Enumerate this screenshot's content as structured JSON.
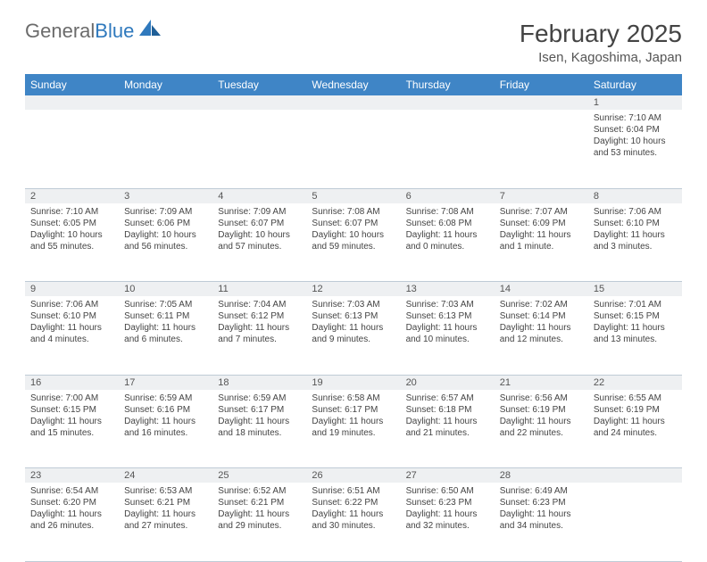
{
  "brand": {
    "part1": "General",
    "part2": "Blue"
  },
  "header": {
    "month_title": "February 2025",
    "location": "Isen, Kagoshima, Japan"
  },
  "colors": {
    "header_bg": "#3f85c6",
    "header_text": "#ffffff",
    "daynum_bg": "#eef0f2",
    "border": "#bfcbd6",
    "body_text": "#444444",
    "logo_gray": "#6b6b6b",
    "logo_blue": "#2f79bd"
  },
  "weekdays": [
    "Sunday",
    "Monday",
    "Tuesday",
    "Wednesday",
    "Thursday",
    "Friday",
    "Saturday"
  ],
  "weeks": [
    {
      "nums": [
        "",
        "",
        "",
        "",
        "",
        "",
        "1"
      ],
      "cells": [
        null,
        null,
        null,
        null,
        null,
        null,
        {
          "sunrise": "7:10 AM",
          "sunset": "6:04 PM",
          "daylight": "10 hours and 53 minutes."
        }
      ]
    },
    {
      "nums": [
        "2",
        "3",
        "4",
        "5",
        "6",
        "7",
        "8"
      ],
      "cells": [
        {
          "sunrise": "7:10 AM",
          "sunset": "6:05 PM",
          "daylight": "10 hours and 55 minutes."
        },
        {
          "sunrise": "7:09 AM",
          "sunset": "6:06 PM",
          "daylight": "10 hours and 56 minutes."
        },
        {
          "sunrise": "7:09 AM",
          "sunset": "6:07 PM",
          "daylight": "10 hours and 57 minutes."
        },
        {
          "sunrise": "7:08 AM",
          "sunset": "6:07 PM",
          "daylight": "10 hours and 59 minutes."
        },
        {
          "sunrise": "7:08 AM",
          "sunset": "6:08 PM",
          "daylight": "11 hours and 0 minutes."
        },
        {
          "sunrise": "7:07 AM",
          "sunset": "6:09 PM",
          "daylight": "11 hours and 1 minute."
        },
        {
          "sunrise": "7:06 AM",
          "sunset": "6:10 PM",
          "daylight": "11 hours and 3 minutes."
        }
      ]
    },
    {
      "nums": [
        "9",
        "10",
        "11",
        "12",
        "13",
        "14",
        "15"
      ],
      "cells": [
        {
          "sunrise": "7:06 AM",
          "sunset": "6:10 PM",
          "daylight": "11 hours and 4 minutes."
        },
        {
          "sunrise": "7:05 AM",
          "sunset": "6:11 PM",
          "daylight": "11 hours and 6 minutes."
        },
        {
          "sunrise": "7:04 AM",
          "sunset": "6:12 PM",
          "daylight": "11 hours and 7 minutes."
        },
        {
          "sunrise": "7:03 AM",
          "sunset": "6:13 PM",
          "daylight": "11 hours and 9 minutes."
        },
        {
          "sunrise": "7:03 AM",
          "sunset": "6:13 PM",
          "daylight": "11 hours and 10 minutes."
        },
        {
          "sunrise": "7:02 AM",
          "sunset": "6:14 PM",
          "daylight": "11 hours and 12 minutes."
        },
        {
          "sunrise": "7:01 AM",
          "sunset": "6:15 PM",
          "daylight": "11 hours and 13 minutes."
        }
      ]
    },
    {
      "nums": [
        "16",
        "17",
        "18",
        "19",
        "20",
        "21",
        "22"
      ],
      "cells": [
        {
          "sunrise": "7:00 AM",
          "sunset": "6:15 PM",
          "daylight": "11 hours and 15 minutes."
        },
        {
          "sunrise": "6:59 AM",
          "sunset": "6:16 PM",
          "daylight": "11 hours and 16 minutes."
        },
        {
          "sunrise": "6:59 AM",
          "sunset": "6:17 PM",
          "daylight": "11 hours and 18 minutes."
        },
        {
          "sunrise": "6:58 AM",
          "sunset": "6:17 PM",
          "daylight": "11 hours and 19 minutes."
        },
        {
          "sunrise": "6:57 AM",
          "sunset": "6:18 PM",
          "daylight": "11 hours and 21 minutes."
        },
        {
          "sunrise": "6:56 AM",
          "sunset": "6:19 PM",
          "daylight": "11 hours and 22 minutes."
        },
        {
          "sunrise": "6:55 AM",
          "sunset": "6:19 PM",
          "daylight": "11 hours and 24 minutes."
        }
      ]
    },
    {
      "nums": [
        "23",
        "24",
        "25",
        "26",
        "27",
        "28",
        ""
      ],
      "cells": [
        {
          "sunrise": "6:54 AM",
          "sunset": "6:20 PM",
          "daylight": "11 hours and 26 minutes."
        },
        {
          "sunrise": "6:53 AM",
          "sunset": "6:21 PM",
          "daylight": "11 hours and 27 minutes."
        },
        {
          "sunrise": "6:52 AM",
          "sunset": "6:21 PM",
          "daylight": "11 hours and 29 minutes."
        },
        {
          "sunrise": "6:51 AM",
          "sunset": "6:22 PM",
          "daylight": "11 hours and 30 minutes."
        },
        {
          "sunrise": "6:50 AM",
          "sunset": "6:23 PM",
          "daylight": "11 hours and 32 minutes."
        },
        {
          "sunrise": "6:49 AM",
          "sunset": "6:23 PM",
          "daylight": "11 hours and 34 minutes."
        },
        null
      ]
    }
  ],
  "labels": {
    "sunrise": "Sunrise:",
    "sunset": "Sunset:",
    "daylight": "Daylight:"
  }
}
